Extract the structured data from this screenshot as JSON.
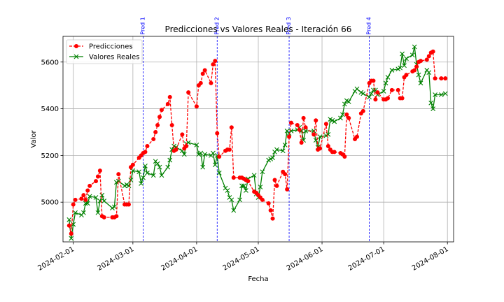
{
  "chart_data": {
    "type": "line",
    "title": "Predicciones vs Valores Reales - Iteración 66",
    "xlabel": "Fecha",
    "ylabel": "Valor",
    "x_range": [
      "2024-01-27",
      "2024-08-04"
    ],
    "ylim": [
      4830,
      5710
    ],
    "grid": true,
    "legend_position": "top-left",
    "x_ticks": [
      "2024-02-01",
      "2024-03-01",
      "2024-04-01",
      "2024-05-01",
      "2024-06-01",
      "2024-07-01",
      "2024-08-01"
    ],
    "y_ticks": [
      5000,
      5200,
      5400,
      5600
    ],
    "vertical_lines": [
      {
        "label": "Pred 1",
        "x": "2024-03-06",
        "color": "#0000ff"
      },
      {
        "label": "Pred 2",
        "x": "2024-04-11",
        "color": "#0000ff"
      },
      {
        "label": "Pred 3",
        "x": "2024-05-16",
        "color": "#0000ff"
      },
      {
        "label": "Pred 4",
        "x": "2024-06-24",
        "color": "#0000ff"
      }
    ],
    "series": [
      {
        "name": "Predicciones",
        "color": "#ff0000",
        "style": "dashed",
        "marker": "circle",
        "points": [
          [
            "2024-01-30",
            4900
          ],
          [
            "2024-01-31",
            4865
          ],
          [
            "2024-02-01",
            4990
          ],
          [
            "2024-02-02",
            5010
          ],
          [
            "2024-02-05",
            5015
          ],
          [
            "2024-02-06",
            5030
          ],
          [
            "2024-02-07",
            5010
          ],
          [
            "2024-02-08",
            5050
          ],
          [
            "2024-02-09",
            5070
          ],
          [
            "2024-02-12",
            5090
          ],
          [
            "2024-02-13",
            5110
          ],
          [
            "2024-02-14",
            5135
          ],
          [
            "2024-02-15",
            4940
          ],
          [
            "2024-02-16",
            4935
          ],
          [
            "2024-02-20",
            4935
          ],
          [
            "2024-02-21",
            4935
          ],
          [
            "2024-02-22",
            4940
          ],
          [
            "2024-02-23",
            5120
          ],
          [
            "2024-02-26",
            4990
          ],
          [
            "2024-02-27",
            4990
          ],
          [
            "2024-02-28",
            4990
          ],
          [
            "2024-02-29",
            5150
          ],
          [
            "2024-03-01",
            5160
          ],
          [
            "2024-03-04",
            5190
          ],
          [
            "2024-03-05",
            5200
          ],
          [
            "2024-03-06",
            5210
          ],
          [
            "2024-03-07",
            5215
          ],
          [
            "2024-03-08",
            5240
          ],
          [
            "2024-03-11",
            5270
          ],
          [
            "2024-03-12",
            5300
          ],
          [
            "2024-03-13",
            5330
          ],
          [
            "2024-03-14",
            5365
          ],
          [
            "2024-03-15",
            5395
          ],
          [
            "2024-03-18",
            5420
          ],
          [
            "2024-03-19",
            5450
          ],
          [
            "2024-03-20",
            5330
          ],
          [
            "2024-03-21",
            5220
          ],
          [
            "2024-03-22",
            5225
          ],
          [
            "2024-03-25",
            5290
          ],
          [
            "2024-03-26",
            5230
          ],
          [
            "2024-03-27",
            5240
          ],
          [
            "2024-03-28",
            5470
          ],
          [
            "2024-04-01",
            5410
          ],
          [
            "2024-04-02",
            5500
          ],
          [
            "2024-04-03",
            5510
          ],
          [
            "2024-04-04",
            5550
          ],
          [
            "2024-04-05",
            5565
          ],
          [
            "2024-04-08",
            5510
          ],
          [
            "2024-04-09",
            5590
          ],
          [
            "2024-04-10",
            5605
          ],
          [
            "2024-04-11",
            5295
          ],
          [
            "2024-04-12",
            5195
          ],
          [
            "2024-04-15",
            5220
          ],
          [
            "2024-04-16",
            5225
          ],
          [
            "2024-04-17",
            5225
          ],
          [
            "2024-04-18",
            5320
          ],
          [
            "2024-04-19",
            5105
          ],
          [
            "2024-04-22",
            5105
          ],
          [
            "2024-04-23",
            5105
          ],
          [
            "2024-04-24",
            5100
          ],
          [
            "2024-04-25",
            5095
          ],
          [
            "2024-04-26",
            5090
          ],
          [
            "2024-04-29",
            5045
          ],
          [
            "2024-04-30",
            5040
          ],
          [
            "2024-05-01",
            5030
          ],
          [
            "2024-05-02",
            5020
          ],
          [
            "2024-05-03",
            5010
          ],
          [
            "2024-05-06",
            4995
          ],
          [
            "2024-05-07",
            4965
          ],
          [
            "2024-05-08",
            4930
          ],
          [
            "2024-05-09",
            5095
          ],
          [
            "2024-05-10",
            5070
          ],
          [
            "2024-05-13",
            5130
          ],
          [
            "2024-05-14",
            5120
          ],
          [
            "2024-05-15",
            5055
          ],
          [
            "2024-05-16",
            5280
          ],
          [
            "2024-05-17",
            5340
          ],
          [
            "2024-05-20",
            5330
          ],
          [
            "2024-05-21",
            5310
          ],
          [
            "2024-05-22",
            5255
          ],
          [
            "2024-05-23",
            5360
          ],
          [
            "2024-05-24",
            5320
          ],
          [
            "2024-05-28",
            5290
          ],
          [
            "2024-05-29",
            5350
          ],
          [
            "2024-05-30",
            5225
          ],
          [
            "2024-05-31",
            5230
          ],
          [
            "2024-06-03",
            5335
          ],
          [
            "2024-06-04",
            5240
          ],
          [
            "2024-06-05",
            5225
          ],
          [
            "2024-06-06",
            5215
          ],
          [
            "2024-06-07",
            5215
          ],
          [
            "2024-06-10",
            5210
          ],
          [
            "2024-06-11",
            5205
          ],
          [
            "2024-06-12",
            5195
          ],
          [
            "2024-06-13",
            5375
          ],
          [
            "2024-06-14",
            5360
          ],
          [
            "2024-06-17",
            5270
          ],
          [
            "2024-06-18",
            5280
          ],
          [
            "2024-06-20",
            5380
          ],
          [
            "2024-06-21",
            5390
          ],
          [
            "2024-06-24",
            5510
          ],
          [
            "2024-06-25",
            5520
          ],
          [
            "2024-06-26",
            5520
          ],
          [
            "2024-06-27",
            5440
          ],
          [
            "2024-06-28",
            5470
          ],
          [
            "2024-07-01",
            5440
          ],
          [
            "2024-07-02",
            5440
          ],
          [
            "2024-07-03",
            5445
          ],
          [
            "2024-07-05",
            5480
          ],
          [
            "2024-07-08",
            5480
          ],
          [
            "2024-07-09",
            5445
          ],
          [
            "2024-07-10",
            5445
          ],
          [
            "2024-07-11",
            5535
          ],
          [
            "2024-07-12",
            5545
          ],
          [
            "2024-07-15",
            5560
          ],
          [
            "2024-07-16",
            5565
          ],
          [
            "2024-07-17",
            5580
          ],
          [
            "2024-07-18",
            5600
          ],
          [
            "2024-07-19",
            5605
          ],
          [
            "2024-07-22",
            5610
          ],
          [
            "2024-07-23",
            5625
          ],
          [
            "2024-07-24",
            5640
          ],
          [
            "2024-07-25",
            5645
          ],
          [
            "2024-07-26",
            5530
          ],
          [
            "2024-07-29",
            5530
          ],
          [
            "2024-07-31",
            5530
          ]
        ]
      },
      {
        "name": "Valores Reales",
        "color": "#008000",
        "style": "solid",
        "marker": "x",
        "points": [
          [
            "2024-01-30",
            4925
          ],
          [
            "2024-01-31",
            4845
          ],
          [
            "2024-02-01",
            4905
          ],
          [
            "2024-02-02",
            4955
          ],
          [
            "2024-02-05",
            4945
          ],
          [
            "2024-02-06",
            4955
          ],
          [
            "2024-02-07",
            4995
          ],
          [
            "2024-02-08",
            4995
          ],
          [
            "2024-02-09",
            5025
          ],
          [
            "2024-02-12",
            5020
          ],
          [
            "2024-02-13",
            4955
          ],
          [
            "2024-02-14",
            5005
          ],
          [
            "2024-02-15",
            5030
          ],
          [
            "2024-02-16",
            5005
          ],
          [
            "2024-02-20",
            4975
          ],
          [
            "2024-02-21",
            4980
          ],
          [
            "2024-02-22",
            5085
          ],
          [
            "2024-02-23",
            5090
          ],
          [
            "2024-02-26",
            5070
          ],
          [
            "2024-02-27",
            5075
          ],
          [
            "2024-02-28",
            5070
          ],
          [
            "2024-02-29",
            5095
          ],
          [
            "2024-03-01",
            5135
          ],
          [
            "2024-03-04",
            5130
          ],
          [
            "2024-03-05",
            5080
          ],
          [
            "2024-03-06",
            5105
          ],
          [
            "2024-03-07",
            5155
          ],
          [
            "2024-03-08",
            5125
          ],
          [
            "2024-03-11",
            5115
          ],
          [
            "2024-03-12",
            5175
          ],
          [
            "2024-03-13",
            5165
          ],
          [
            "2024-03-14",
            5150
          ],
          [
            "2024-03-15",
            5115
          ],
          [
            "2024-03-18",
            5150
          ],
          [
            "2024-03-19",
            5180
          ],
          [
            "2024-03-20",
            5225
          ],
          [
            "2024-03-21",
            5240
          ],
          [
            "2024-03-22",
            5235
          ],
          [
            "2024-03-25",
            5220
          ],
          [
            "2024-03-26",
            5205
          ],
          [
            "2024-03-27",
            5250
          ],
          [
            "2024-03-28",
            5255
          ],
          [
            "2024-04-01",
            5245
          ],
          [
            "2024-04-02",
            5205
          ],
          [
            "2024-04-03",
            5210
          ],
          [
            "2024-04-04",
            5150
          ],
          [
            "2024-04-05",
            5205
          ],
          [
            "2024-04-08",
            5200
          ],
          [
            "2024-04-09",
            5210
          ],
          [
            "2024-04-10",
            5160
          ],
          [
            "2024-04-11",
            5200
          ],
          [
            "2024-04-12",
            5125
          ],
          [
            "2024-04-15",
            5060
          ],
          [
            "2024-04-16",
            5050
          ],
          [
            "2024-04-17",
            5020
          ],
          [
            "2024-04-18",
            5010
          ],
          [
            "2024-04-19",
            4965
          ],
          [
            "2024-04-22",
            5010
          ],
          [
            "2024-04-23",
            5070
          ],
          [
            "2024-04-24",
            5070
          ],
          [
            "2024-04-25",
            5050
          ],
          [
            "2024-04-26",
            5100
          ],
          [
            "2024-04-29",
            5115
          ],
          [
            "2024-04-30",
            5035
          ],
          [
            "2024-05-01",
            5020
          ],
          [
            "2024-05-02",
            5065
          ],
          [
            "2024-05-03",
            5130
          ],
          [
            "2024-05-06",
            5180
          ],
          [
            "2024-05-07",
            5185
          ],
          [
            "2024-05-08",
            5190
          ],
          [
            "2024-05-09",
            5215
          ],
          [
            "2024-05-10",
            5225
          ],
          [
            "2024-05-13",
            5220
          ],
          [
            "2024-05-14",
            5245
          ],
          [
            "2024-05-15",
            5305
          ],
          [
            "2024-05-16",
            5295
          ],
          [
            "2024-05-17",
            5305
          ],
          [
            "2024-05-20",
            5310
          ],
          [
            "2024-05-21",
            5320
          ],
          [
            "2024-05-22",
            5305
          ],
          [
            "2024-05-23",
            5265
          ],
          [
            "2024-05-24",
            5305
          ],
          [
            "2024-05-28",
            5305
          ],
          [
            "2024-05-29",
            5265
          ],
          [
            "2024-05-30",
            5235
          ],
          [
            "2024-05-31",
            5280
          ],
          [
            "2024-06-03",
            5285
          ],
          [
            "2024-06-04",
            5290
          ],
          [
            "2024-06-05",
            5355
          ],
          [
            "2024-06-06",
            5350
          ],
          [
            "2024-06-07",
            5345
          ],
          [
            "2024-06-10",
            5360
          ],
          [
            "2024-06-11",
            5375
          ],
          [
            "2024-06-12",
            5420
          ],
          [
            "2024-06-13",
            5435
          ],
          [
            "2024-06-14",
            5430
          ],
          [
            "2024-06-17",
            5475
          ],
          [
            "2024-06-18",
            5485
          ],
          [
            "2024-06-20",
            5470
          ],
          [
            "2024-06-21",
            5465
          ],
          [
            "2024-06-24",
            5450
          ],
          [
            "2024-06-25",
            5465
          ],
          [
            "2024-06-26",
            5480
          ],
          [
            "2024-06-27",
            5480
          ],
          [
            "2024-06-28",
            5460
          ],
          [
            "2024-07-01",
            5475
          ],
          [
            "2024-07-02",
            5510
          ],
          [
            "2024-07-03",
            5535
          ],
          [
            "2024-07-05",
            5565
          ],
          [
            "2024-07-08",
            5570
          ],
          [
            "2024-07-09",
            5575
          ],
          [
            "2024-07-10",
            5635
          ],
          [
            "2024-07-11",
            5585
          ],
          [
            "2024-07-12",
            5615
          ],
          [
            "2024-07-15",
            5630
          ],
          [
            "2024-07-16",
            5665
          ],
          [
            "2024-07-17",
            5590
          ],
          [
            "2024-07-18",
            5545
          ],
          [
            "2024-07-19",
            5510
          ],
          [
            "2024-07-22",
            5565
          ],
          [
            "2024-07-23",
            5555
          ],
          [
            "2024-07-24",
            5425
          ],
          [
            "2024-07-25",
            5400
          ],
          [
            "2024-07-26",
            5460
          ],
          [
            "2024-07-29",
            5460
          ],
          [
            "2024-07-31",
            5465
          ]
        ]
      }
    ]
  }
}
